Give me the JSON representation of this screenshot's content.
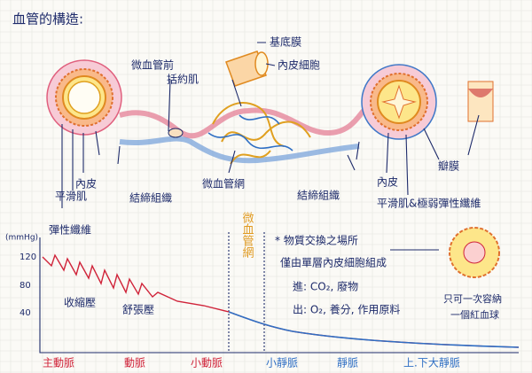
{
  "title": "血管的構造:",
  "artery": {
    "smooth_muscle": "平滑肌",
    "endothelium": "內皮",
    "elastic_fiber": "彈性纖維",
    "connective_tissue": "結締組織"
  },
  "sphincter": {
    "line1": "微血管前",
    "line2": "括約肌"
  },
  "capillary": {
    "basement_membrane": "基底膜",
    "endothelial_cell": "內皮細胞",
    "network": "微血管網"
  },
  "vein": {
    "connective_tissue": "結締組織",
    "endothelium": "內皮",
    "smooth_muscle": "平滑肌&極弱彈性纖維",
    "valve": "瓣膜"
  },
  "pressure_chart": {
    "unit": "(mmHg)",
    "yticks": [
      "120",
      "80",
      "40"
    ],
    "systolic": "收縮壓",
    "diastolic": "舒張壓",
    "capillary_label": "微血管網",
    "categories": [
      "主動脈",
      "動脈",
      "小動脈",
      "小靜脈",
      "靜脈",
      "上.下大靜脈"
    ]
  },
  "notes": {
    "line1": "* 物質交換之場所",
    "line2": "僅由單層內皮細胞組成",
    "line3": "進: CO₂, 廢物",
    "line4": "出: O₂, 養分, 作用原料"
  },
  "red_cell": {
    "line1": "只可一次容納",
    "line2": "一個紅血球"
  }
}
